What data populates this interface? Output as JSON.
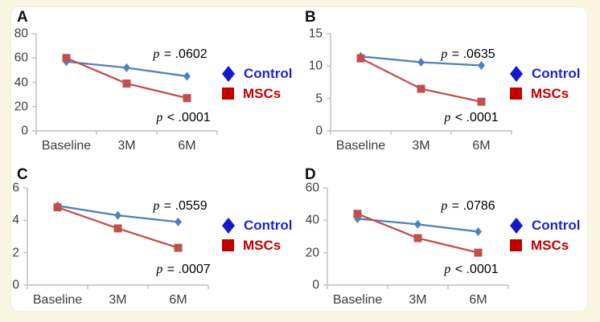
{
  "figure": {
    "background_color": "#FAF6E2",
    "card_color": "#FFFFFF",
    "axis_color": "#BFBFBF",
    "tick_text_color": "#3C3C3C"
  },
  "legend": {
    "control_label": "Control",
    "mscs_label": "MSCs",
    "control_marker_color": "#1717CE",
    "mscs_marker_color": "#C00000",
    "control_text_color": "#2222CC",
    "mscs_text_color": "#C00000",
    "position": "right"
  },
  "chart_data": [
    {
      "id": "A",
      "type": "line",
      "categories": [
        "Baseline",
        "3M",
        "6M"
      ],
      "ylim": [
        0,
        80
      ],
      "yticks": [
        80,
        60,
        40,
        20,
        0
      ],
      "grid": false,
      "series": [
        {
          "name": "Control",
          "marker": "diamond",
          "color": "#4F81BD",
          "values": [
            57,
            52,
            45
          ]
        },
        {
          "name": "MSCs",
          "marker": "square",
          "color": "#C0504D",
          "values": [
            60,
            39,
            27
          ]
        }
      ],
      "p_top": {
        "symbol": "p",
        "rest": " = .0602"
      },
      "p_bottom": {
        "symbol": "p",
        "rest": " < .0001"
      }
    },
    {
      "id": "B",
      "type": "line",
      "categories": [
        "Baseline",
        "3M",
        "6M"
      ],
      "ylim": [
        0,
        15
      ],
      "yticks": [
        15,
        10,
        5,
        0
      ],
      "grid": false,
      "series": [
        {
          "name": "Control",
          "marker": "diamond",
          "color": "#4F81BD",
          "values": [
            11.5,
            10.6,
            10.1
          ]
        },
        {
          "name": "MSCs",
          "marker": "square",
          "color": "#C0504D",
          "values": [
            11.2,
            6.5,
            4.5
          ]
        }
      ],
      "p_top": {
        "symbol": "p",
        "rest": " = .0635"
      },
      "p_bottom": {
        "symbol": "p",
        "rest": " < .0001"
      }
    },
    {
      "id": "C",
      "type": "line",
      "categories": [
        "Baseline",
        "3M",
        "6M"
      ],
      "ylim": [
        0,
        6
      ],
      "yticks": [
        6,
        4,
        2,
        0
      ],
      "grid": false,
      "series": [
        {
          "name": "Control",
          "marker": "diamond",
          "color": "#4F81BD",
          "values": [
            4.9,
            4.3,
            3.9
          ]
        },
        {
          "name": "MSCs",
          "marker": "square",
          "color": "#C0504D",
          "values": [
            4.8,
            3.5,
            2.3
          ]
        }
      ],
      "p_top": {
        "symbol": "p",
        "rest": " = .0559"
      },
      "p_bottom": {
        "symbol": "p",
        "rest": " = .0007"
      }
    },
    {
      "id": "D",
      "type": "line",
      "categories": [
        "Baseline",
        "3M",
        "6M"
      ],
      "ylim": [
        0,
        60
      ],
      "yticks": [
        60,
        40,
        20,
        0
      ],
      "grid": false,
      "series": [
        {
          "name": "Control",
          "marker": "diamond",
          "color": "#4F81BD",
          "values": [
            41,
            37.5,
            33
          ]
        },
        {
          "name": "MSCs",
          "marker": "square",
          "color": "#C0504D",
          "values": [
            44,
            29,
            20
          ]
        }
      ],
      "p_top": {
        "symbol": "p",
        "rest": " = .0786"
      },
      "p_bottom": {
        "symbol": "p",
        "rest": " < .0001"
      }
    }
  ]
}
